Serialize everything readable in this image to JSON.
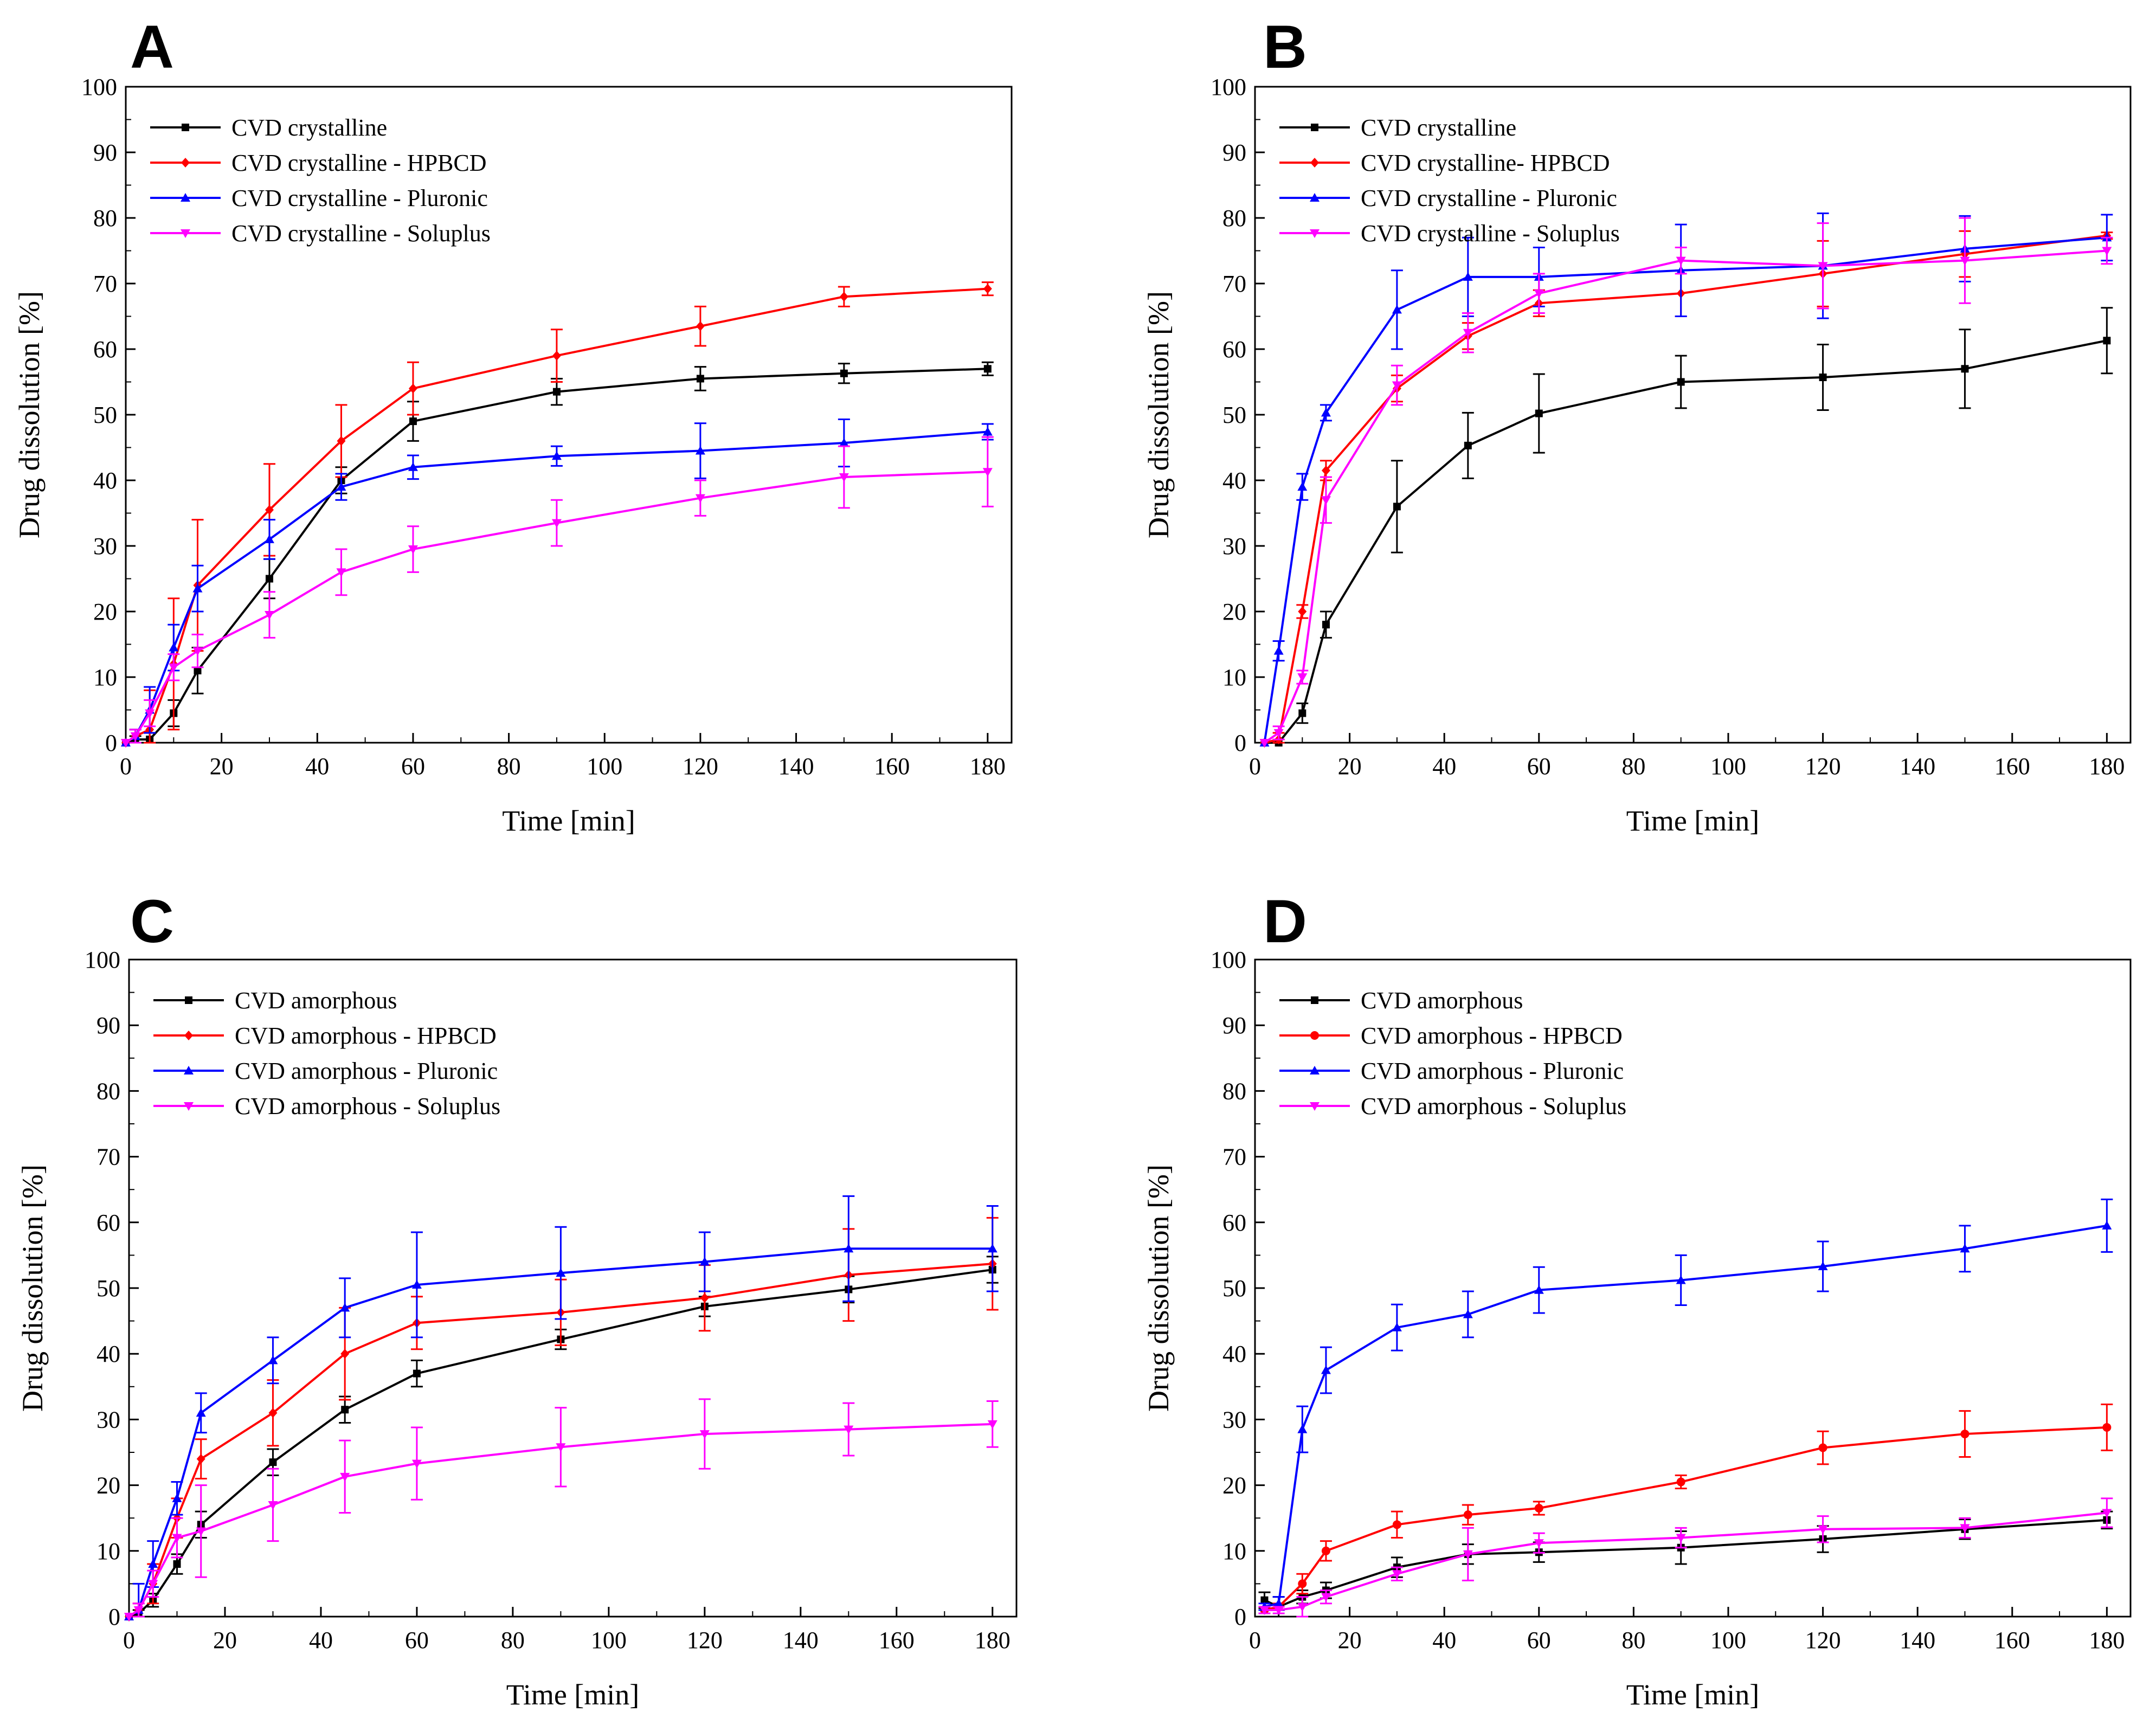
{
  "chart_data": [
    {
      "panel": "A",
      "type": "line",
      "xlabel": "Time [min]",
      "ylabel": "Drug dissolution [%]",
      "xlim": [
        0,
        185
      ],
      "ylim": [
        0,
        100
      ],
      "xticks": [
        0,
        20,
        40,
        60,
        80,
        100,
        120,
        140,
        160,
        180
      ],
      "yticks": [
        0,
        10,
        20,
        30,
        40,
        50,
        60,
        70,
        80,
        90,
        100
      ],
      "legend_position": "top-left",
      "x": [
        0,
        2,
        5,
        10,
        15,
        30,
        45,
        60,
        90,
        120,
        150,
        180
      ],
      "series": [
        {
          "name": "CVD crystalline",
          "color": "#000000",
          "marker": "square",
          "values": [
            0,
            0.5,
            0.5,
            4.5,
            11,
            25,
            40,
            49,
            53.5,
            55.5,
            56.3,
            57
          ],
          "errors": [
            0,
            0.5,
            1,
            2,
            3.5,
            3,
            2,
            3,
            2,
            1.8,
            1.5,
            1
          ]
        },
        {
          "name": "CVD crystalline - HPBCD",
          "color": "#ff0000",
          "marker": "diamond",
          "values": [
            0,
            1,
            2,
            12,
            24,
            35.5,
            46,
            54,
            59,
            63.5,
            68,
            69.2
          ],
          "errors": [
            0,
            1,
            6,
            10,
            10,
            7,
            5.5,
            4,
            4,
            3,
            1.5,
            1
          ]
        },
        {
          "name": "CVD crystalline - Pluronic",
          "color": "#0000ff",
          "marker": "triangle-up",
          "values": [
            0,
            1,
            5,
            14.5,
            23.5,
            31,
            39,
            42,
            43.7,
            44.5,
            45.7,
            47.4
          ],
          "errors": [
            0,
            1,
            3.5,
            3.5,
            3.5,
            3,
            2,
            1.8,
            1.5,
            4.2,
            3.6,
            1.2
          ]
        },
        {
          "name": "CVD crystalline - Soluplus",
          "color": "#ff00ff",
          "marker": "triangle-down",
          "values": [
            0,
            1,
            4.5,
            11.5,
            14,
            19.5,
            26,
            29.5,
            33.5,
            37.3,
            40.5,
            41.3
          ],
          "errors": [
            0,
            1,
            2,
            2,
            2.5,
            3.5,
            3.5,
            3.5,
            3.5,
            2.7,
            4.7,
            5.3
          ]
        }
      ]
    },
    {
      "panel": "B",
      "type": "line",
      "xlabel": "Time [min]",
      "ylabel": "Drug dissolution [%]",
      "xlim": [
        0,
        185
      ],
      "ylim": [
        0,
        100
      ],
      "xticks": [
        0,
        20,
        40,
        60,
        80,
        100,
        120,
        140,
        160,
        180
      ],
      "yticks": [
        0,
        10,
        20,
        30,
        40,
        50,
        60,
        70,
        80,
        90,
        100
      ],
      "legend_position": "top-left",
      "x": [
        2,
        5,
        10,
        15,
        30,
        45,
        60,
        90,
        120,
        150,
        180
      ],
      "series": [
        {
          "name": "CVD crystalline",
          "color": "#000000",
          "marker": "square",
          "values": [
            0,
            0,
            4.5,
            18,
            36,
            45.3,
            50.2,
            55,
            55.7,
            57,
            61.3
          ],
          "errors": [
            0,
            0.5,
            1.5,
            2,
            7,
            5,
            6,
            4,
            5,
            6,
            5
          ]
        },
        {
          "name": "CVD crystalline- HPBCD",
          "color": "#ff0000",
          "marker": "diamond",
          "values": [
            0,
            0.5,
            20,
            41.5,
            54,
            62,
            67,
            68.5,
            71.5,
            74.5,
            77.3
          ],
          "errors": [
            0,
            1,
            1,
            1.5,
            2,
            2,
            2,
            3.5,
            5,
            3.5,
            0.5
          ]
        },
        {
          "name": "CVD crystalline - Pluronic",
          "color": "#0000ff",
          "marker": "triangle-up",
          "values": [
            0,
            14,
            39,
            50.3,
            66,
            71,
            71,
            72,
            72.7,
            75.3,
            77
          ],
          "errors": [
            0,
            1.5,
            2,
            1.2,
            6,
            6,
            4.5,
            7,
            8,
            5,
            3.5
          ]
        },
        {
          "name": "CVD crystalline - Soluplus",
          "color": "#ff00ff",
          "marker": "triangle-down",
          "values": [
            0,
            1.5,
            10,
            37,
            54.5,
            62.5,
            68.5,
            73.5,
            72.7,
            73.5,
            75
          ],
          "errors": [
            0,
            1,
            1,
            3.5,
            3,
            3,
            3,
            2,
            6.5,
            6.5,
            2
          ]
        }
      ]
    },
    {
      "panel": "C",
      "type": "line",
      "xlabel": "Time [min]",
      "ylabel": "Drug dissolution [%]",
      "xlim": [
        0,
        185
      ],
      "ylim": [
        0,
        100
      ],
      "xticks": [
        0,
        20,
        40,
        60,
        80,
        100,
        120,
        140,
        160,
        180
      ],
      "yticks": [
        0,
        10,
        20,
        30,
        40,
        50,
        60,
        70,
        80,
        90,
        100
      ],
      "legend_position": "top-left",
      "x": [
        0,
        2,
        5,
        10,
        15,
        30,
        45,
        60,
        90,
        120,
        150,
        180
      ],
      "series": [
        {
          "name": "CVD amorphous",
          "color": "#000000",
          "marker": "square",
          "values": [
            0,
            0.5,
            2.5,
            8,
            14,
            23.5,
            31.5,
            37,
            42.2,
            47.2,
            49.8,
            52.8
          ],
          "errors": [
            0,
            0.5,
            1,
            1.5,
            2,
            2,
            2,
            2,
            1.5,
            1.5,
            2,
            2
          ]
        },
        {
          "name": "CVD amorphous - HPBCD",
          "color": "#ff0000",
          "marker": "diamond",
          "values": [
            0,
            1,
            5,
            15,
            24,
            31,
            40,
            44.7,
            46.3,
            48.5,
            52,
            53.7
          ],
          "errors": [
            0,
            1,
            3,
            3,
            3,
            5,
            7,
            4,
            5,
            5,
            7,
            7
          ]
        },
        {
          "name": "CVD amorphous - Pluronic",
          "color": "#0000ff",
          "marker": "triangle-up",
          "values": [
            0,
            1,
            8,
            18,
            31,
            39,
            47,
            50.5,
            52.3,
            54,
            56,
            56
          ],
          "errors": [
            0,
            4,
            3.5,
            2.5,
            3,
            3.5,
            4.5,
            8,
            7,
            4.5,
            8,
            6.5
          ]
        },
        {
          "name": "CVD amorphous - Soluplus",
          "color": "#ff00ff",
          "marker": "triangle-down",
          "values": [
            0,
            1,
            5,
            12,
            13,
            17,
            21.3,
            23.3,
            25.8,
            27.8,
            28.5,
            29.3
          ],
          "errors": [
            0,
            1,
            2,
            3,
            7,
            5.5,
            5.5,
            5.5,
            6,
            5.3,
            4,
            3.5
          ]
        }
      ]
    },
    {
      "panel": "D",
      "type": "line",
      "xlabel": "Time [min]",
      "ylabel": "Drug dissolution [%]",
      "xlim": [
        0,
        185
      ],
      "ylim": [
        0,
        100
      ],
      "xticks": [
        0,
        20,
        40,
        60,
        80,
        100,
        120,
        140,
        160,
        180
      ],
      "yticks": [
        0,
        10,
        20,
        30,
        40,
        50,
        60,
        70,
        80,
        90,
        100
      ],
      "legend_position": "top-left",
      "x": [
        2,
        5,
        10,
        15,
        30,
        45,
        60,
        90,
        120,
        150,
        180
      ],
      "series": [
        {
          "name": "CVD amorphous",
          "color": "#000000",
          "marker": "square",
          "values": [
            2.5,
            1.5,
            3,
            4,
            7.5,
            9.5,
            9.8,
            10.5,
            11.8,
            13.3,
            14.7
          ],
          "errors": [
            1.2,
            1.5,
            1,
            1.2,
            1.5,
            1.5,
            1.5,
            2.5,
            2,
            1.5,
            1.3
          ]
        },
        {
          "name": "CVD amorphous - HPBCD",
          "color": "#ff0000",
          "marker": "circle",
          "values": [
            1,
            1.5,
            5,
            10,
            14,
            15.5,
            16.5,
            20.5,
            25.7,
            27.8,
            28.8
          ],
          "errors": [
            0.5,
            0.5,
            1.5,
            1.5,
            2,
            1.5,
            1,
            1,
            2.5,
            3.5,
            3.5
          ]
        },
        {
          "name": "CVD amorphous - Pluronic",
          "color": "#0000ff",
          "marker": "triangle-up",
          "values": [
            1.5,
            2,
            28.5,
            37.5,
            44,
            46,
            49.7,
            51.2,
            53.3,
            56,
            59.5
          ],
          "errors": [
            0.5,
            1,
            3.5,
            3.5,
            3.5,
            3.5,
            3.5,
            3.8,
            3.8,
            3.5,
            4
          ]
        },
        {
          "name": "CVD amorphous - Soluplus",
          "color": "#ff00ff",
          "marker": "triangle-down",
          "values": [
            1,
            1,
            1.5,
            3,
            6.5,
            9.5,
            11.2,
            12,
            13.3,
            13.5,
            15.8
          ],
          "errors": [
            0.5,
            0.5,
            1.5,
            1,
            1,
            4,
            1.5,
            1.5,
            2,
            1.5,
            2.2
          ]
        }
      ]
    }
  ]
}
